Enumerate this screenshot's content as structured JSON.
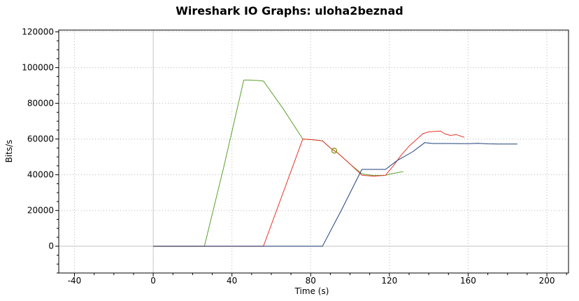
{
  "chart_data": {
    "type": "line",
    "title": "Wireshark IO Graphs: uloha2beznad",
    "xlabel": "Time (s)",
    "ylabel": "Bits/s",
    "xlim": [
      -48,
      211
    ],
    "ylim": [
      -15000,
      121000
    ],
    "x_ticks": [
      -40,
      0,
      40,
      80,
      120,
      160,
      200
    ],
    "y_ticks": [
      0,
      20000,
      40000,
      60000,
      80000,
      100000,
      120000
    ],
    "grid": true,
    "legend": "none",
    "series": [
      {
        "color": "#5aa02c",
        "points": [
          [
            0,
            0
          ],
          [
            26,
            0
          ],
          [
            36,
            45000
          ],
          [
            46,
            93000
          ],
          [
            49,
            93000
          ],
          [
            53,
            92800
          ],
          [
            56,
            92500
          ],
          [
            66,
            77000
          ],
          [
            76,
            60000
          ],
          [
            82,
            59500
          ],
          [
            86,
            59000
          ],
          [
            90,
            55000
          ],
          [
            94,
            52000
          ],
          [
            100,
            46000
          ],
          [
            106,
            40500
          ],
          [
            112,
            39600
          ],
          [
            118,
            39700
          ],
          [
            121,
            40500
          ],
          [
            126,
            41600
          ],
          [
            127,
            41700
          ]
        ]
      },
      {
        "color": "#e8352a",
        "points": [
          [
            0,
            0
          ],
          [
            56,
            0
          ],
          [
            66,
            30000
          ],
          [
            76,
            60000
          ],
          [
            82,
            59500
          ],
          [
            86,
            59000
          ],
          [
            90,
            55000
          ],
          [
            94,
            52000
          ],
          [
            100,
            46000
          ],
          [
            106,
            39800
          ],
          [
            112,
            39200
          ],
          [
            118,
            39700
          ],
          [
            122,
            45000
          ],
          [
            126,
            51000
          ],
          [
            130,
            56000
          ],
          [
            134,
            60000
          ],
          [
            137,
            63000
          ],
          [
            140,
            64000
          ],
          [
            143,
            64300
          ],
          [
            146,
            64500
          ],
          [
            148,
            63000
          ],
          [
            151,
            62000
          ],
          [
            154,
            62500
          ],
          [
            158,
            61000
          ]
        ]
      },
      {
        "color": "#1f3f7a",
        "points": [
          [
            0,
            0
          ],
          [
            86,
            0
          ],
          [
            96,
            21000
          ],
          [
            106,
            43000
          ],
          [
            112,
            43000
          ],
          [
            118,
            43000
          ],
          [
            124,
            48000
          ],
          [
            132,
            53000
          ],
          [
            138,
            58000
          ],
          [
            142,
            57500
          ],
          [
            150,
            57500
          ],
          [
            160,
            57400
          ],
          [
            165,
            57600
          ],
          [
            170,
            57300
          ],
          [
            175,
            57200
          ],
          [
            185,
            57200
          ]
        ]
      }
    ],
    "annotations": [
      {
        "type": "circle-marker",
        "x": 92,
        "y": 53500,
        "color": "#7a8f00"
      }
    ]
  }
}
